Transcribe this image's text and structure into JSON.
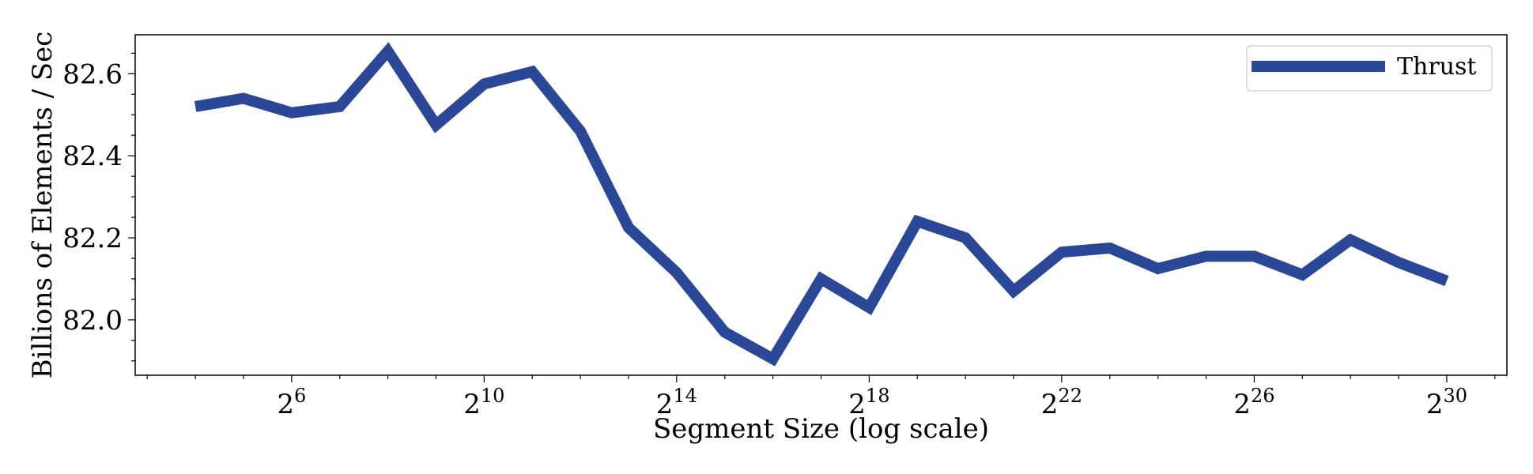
{
  "chart_data": {
    "type": "line",
    "title": "",
    "xlabel": "Segment Size (log scale)",
    "ylabel": "Billions of Elements / Sec",
    "x_scale": "log2",
    "x_tick_base": "2",
    "x_ticks": [
      {
        "exponent": "6"
      },
      {
        "exponent": "10"
      },
      {
        "exponent": "14"
      },
      {
        "exponent": "18"
      },
      {
        "exponent": "22"
      },
      {
        "exponent": "26"
      },
      {
        "exponent": "30"
      }
    ],
    "y_ticks": [
      "82.0",
      "82.2",
      "82.4",
      "82.6"
    ],
    "ylim": [
      81.865,
      82.695
    ],
    "xlim_log2": [
      2.75,
      31.25
    ],
    "grid": false,
    "legend": {
      "position": "top-right"
    },
    "series": [
      {
        "name": "Thrust",
        "color": "#2b4898",
        "x_log2": [
          4,
          5,
          6,
          7,
          8,
          9,
          10,
          11,
          12,
          13,
          14,
          15,
          16,
          17,
          18,
          19,
          20,
          21,
          22,
          23,
          24,
          25,
          26,
          27,
          28,
          29,
          30
        ],
        "values": [
          82.52,
          82.54,
          82.505,
          82.52,
          82.655,
          82.475,
          82.575,
          82.605,
          82.46,
          82.225,
          82.115,
          81.97,
          81.905,
          82.1,
          82.03,
          82.24,
          82.2,
          82.07,
          82.165,
          82.175,
          82.125,
          82.155,
          82.155,
          82.11,
          82.195,
          82.14,
          82.095
        ]
      }
    ]
  }
}
